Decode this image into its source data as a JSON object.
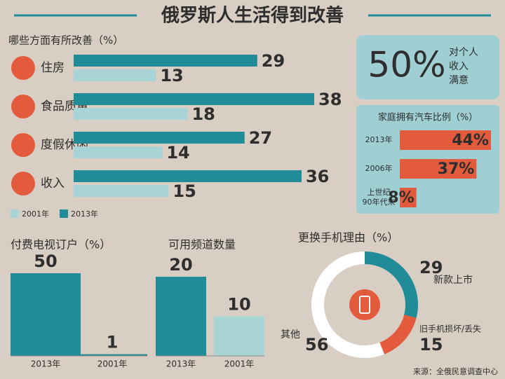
{
  "title": "俄罗斯人生活得到改善",
  "source": "来源：全俄民意调查中心",
  "chart_data": [
    {
      "type": "bar",
      "horizontal": true,
      "title": "哪些方面有所改善（%）",
      "categories": [
        "住房",
        "食品质量",
        "度假休闲",
        "收入"
      ],
      "series": [
        {
          "name": "2001年",
          "color": "#a9d4d6",
          "values": [
            13,
            18,
            14,
            15
          ]
        },
        {
          "name": "2013年",
          "color": "#1f8c98",
          "values": [
            29,
            38,
            27,
            36
          ]
        }
      ]
    },
    {
      "type": "stat",
      "values": [
        50
      ],
      "value_labels": [
        "50%"
      ],
      "text": [
        "对个人",
        "收入",
        "满意"
      ],
      "color": "#e45a3c"
    },
    {
      "type": "bar",
      "horizontal": true,
      "title": "家庭拥有汽车比例（%）",
      "categories": [
        "2013年",
        "2006年",
        "上世纪\n90年代末"
      ],
      "values": [
        44,
        37,
        8
      ],
      "value_labels": [
        "44%",
        "37%",
        "8%"
      ],
      "color": "#e45a3c"
    },
    {
      "type": "bar",
      "title": "付费电视订户（%）",
      "categories": [
        "2013年",
        "2001年"
      ],
      "values": [
        50,
        1
      ],
      "colors": [
        "#1f8c98",
        "#1f8c98"
      ]
    },
    {
      "type": "bar",
      "title": "可用频道数量",
      "categories": [
        "2013年",
        "2001年"
      ],
      "values": [
        20,
        10
      ],
      "colors": [
        "#1f8c98",
        "#a9d4d6"
      ]
    },
    {
      "type": "donut",
      "title": "更换手机理由（%）",
      "categories": [
        "新款上市",
        "旧手机损坏/丢失",
        "其他"
      ],
      "values": [
        29,
        15,
        56
      ],
      "colors": [
        "#1f8c98",
        "#e45a3c",
        "#ffffff"
      ]
    }
  ]
}
